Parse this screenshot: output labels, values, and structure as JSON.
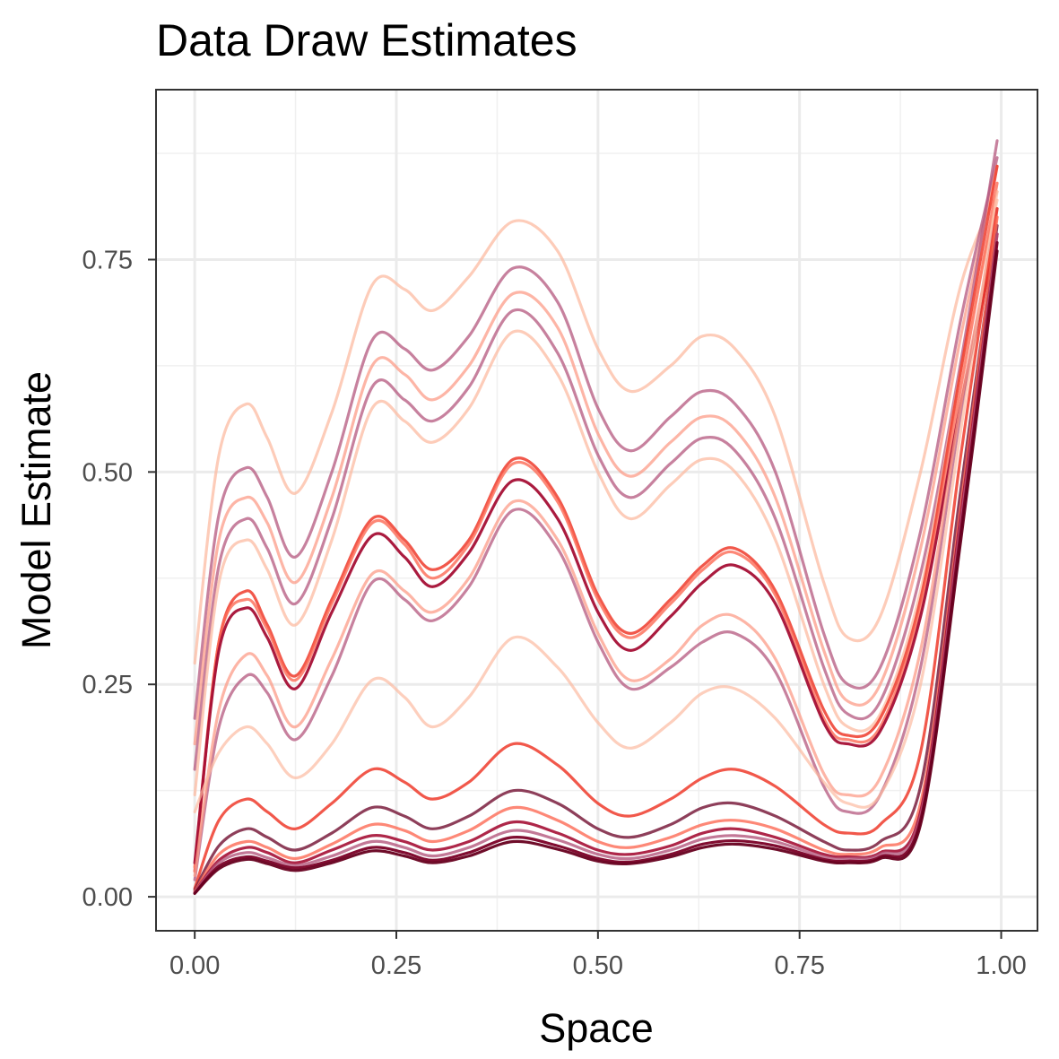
{
  "chart_data": {
    "type": "line",
    "title": "Data Draw Estimates",
    "xlabel": "Space",
    "ylabel": "Model Estimate",
    "xlim": [
      -0.048,
      1.045
    ],
    "ylim": [
      -0.04,
      0.95
    ],
    "x_ticks": [
      "0.00",
      "0.25",
      "0.50",
      "0.75",
      "1.00"
    ],
    "y_ticks": [
      "0.00",
      "0.25",
      "0.50",
      "0.75"
    ],
    "grid": true,
    "legend": "none",
    "x": [
      0.0,
      0.03,
      0.064,
      0.09,
      0.125,
      0.17,
      0.22,
      0.26,
      0.295,
      0.34,
      0.395,
      0.45,
      0.5,
      0.54,
      0.59,
      0.63,
      0.67,
      0.72,
      0.78,
      0.81,
      0.85,
      0.9,
      0.95,
      0.995
    ],
    "series": [
      {
        "color": "#fcbba1",
        "opacity": 0.75,
        "values": [
          0.275,
          0.52,
          0.58,
          0.54,
          0.475,
          0.57,
          0.72,
          0.715,
          0.69,
          0.73,
          0.795,
          0.76,
          0.645,
          0.595,
          0.625,
          0.66,
          0.645,
          0.565,
          0.37,
          0.305,
          0.33,
          0.5,
          0.72,
          0.83
        ]
      },
      {
        "color": "#b4577d",
        "opacity": 0.75,
        "values": [
          0.21,
          0.45,
          0.505,
          0.47,
          0.4,
          0.5,
          0.655,
          0.645,
          0.62,
          0.66,
          0.74,
          0.7,
          0.575,
          0.525,
          0.565,
          0.595,
          0.58,
          0.5,
          0.31,
          0.25,
          0.27,
          0.43,
          0.68,
          0.87
        ]
      },
      {
        "color": "#fc9c88",
        "opacity": 0.75,
        "values": [
          0.18,
          0.42,
          0.47,
          0.44,
          0.37,
          0.47,
          0.625,
          0.615,
          0.585,
          0.625,
          0.71,
          0.67,
          0.545,
          0.495,
          0.535,
          0.565,
          0.55,
          0.47,
          0.29,
          0.23,
          0.25,
          0.41,
          0.66,
          0.86
        ]
      },
      {
        "color": "#b4577d",
        "opacity": 0.75,
        "values": [
          0.15,
          0.39,
          0.445,
          0.41,
          0.345,
          0.445,
          0.6,
          0.585,
          0.56,
          0.6,
          0.69,
          0.64,
          0.52,
          0.47,
          0.51,
          0.54,
          0.525,
          0.445,
          0.27,
          0.215,
          0.23,
          0.38,
          0.63,
          0.89
        ]
      },
      {
        "color": "#fcbba1",
        "opacity": 0.75,
        "values": [
          0.12,
          0.37,
          0.42,
          0.385,
          0.32,
          0.42,
          0.575,
          0.56,
          0.535,
          0.575,
          0.665,
          0.615,
          0.5,
          0.445,
          0.485,
          0.515,
          0.5,
          0.42,
          0.25,
          0.2,
          0.215,
          0.36,
          0.62,
          0.82
        ]
      },
      {
        "color": "#ef3b2c",
        "opacity": 0.85,
        "values": [
          0.03,
          0.3,
          0.36,
          0.32,
          0.26,
          0.35,
          0.445,
          0.42,
          0.385,
          0.42,
          0.515,
          0.47,
          0.355,
          0.31,
          0.35,
          0.39,
          0.41,
          0.36,
          0.22,
          0.19,
          0.21,
          0.35,
          0.62,
          0.86
        ]
      },
      {
        "color": "#fc6a55",
        "opacity": 0.8,
        "values": [
          0.035,
          0.3,
          0.35,
          0.315,
          0.255,
          0.345,
          0.44,
          0.415,
          0.375,
          0.415,
          0.51,
          0.465,
          0.35,
          0.305,
          0.345,
          0.385,
          0.405,
          0.355,
          0.21,
          0.185,
          0.2,
          0.34,
          0.6,
          0.84
        ]
      },
      {
        "color": "#a50f35",
        "opacity": 0.95,
        "values": [
          0.04,
          0.29,
          0.34,
          0.305,
          0.245,
          0.335,
          0.425,
          0.4,
          0.365,
          0.405,
          0.49,
          0.445,
          0.335,
          0.29,
          0.33,
          0.37,
          0.39,
          0.345,
          0.205,
          0.18,
          0.195,
          0.33,
          0.58,
          0.78
        ]
      },
      {
        "color": "#b4577d",
        "opacity": 0.75,
        "values": [
          0.02,
          0.2,
          0.26,
          0.24,
          0.185,
          0.26,
          0.37,
          0.35,
          0.325,
          0.365,
          0.455,
          0.41,
          0.3,
          0.245,
          0.27,
          0.3,
          0.31,
          0.265,
          0.13,
          0.1,
          0.12,
          0.27,
          0.57,
          0.81
        ]
      },
      {
        "color": "#fc9c88",
        "opacity": 0.75,
        "values": [
          0.025,
          0.22,
          0.285,
          0.26,
          0.2,
          0.28,
          0.38,
          0.36,
          0.335,
          0.375,
          0.465,
          0.42,
          0.31,
          0.255,
          0.28,
          0.32,
          0.33,
          0.28,
          0.145,
          0.12,
          0.14,
          0.29,
          0.58,
          0.8
        ]
      },
      {
        "color": "#fcbba1",
        "opacity": 0.7,
        "values": [
          0.1,
          0.17,
          0.2,
          0.18,
          0.14,
          0.18,
          0.255,
          0.235,
          0.2,
          0.235,
          0.305,
          0.27,
          0.205,
          0.175,
          0.205,
          0.24,
          0.245,
          0.21,
          0.135,
          0.11,
          0.12,
          0.25,
          0.55,
          0.83
        ]
      },
      {
        "color": "#ef3b2c",
        "opacity": 0.85,
        "values": [
          0.01,
          0.09,
          0.115,
          0.1,
          0.08,
          0.11,
          0.15,
          0.135,
          0.115,
          0.135,
          0.18,
          0.155,
          0.11,
          0.095,
          0.115,
          0.14,
          0.15,
          0.13,
          0.085,
          0.075,
          0.085,
          0.17,
          0.52,
          0.81
        ]
      },
      {
        "color": "#7a1d3d",
        "opacity": 0.85,
        "values": [
          0.008,
          0.06,
          0.08,
          0.07,
          0.055,
          0.075,
          0.105,
          0.095,
          0.08,
          0.095,
          0.125,
          0.11,
          0.08,
          0.07,
          0.085,
          0.105,
          0.11,
          0.095,
          0.065,
          0.055,
          0.065,
          0.13,
          0.48,
          0.79
        ]
      },
      {
        "color": "#fc6a55",
        "opacity": 0.8,
        "values": [
          0.006,
          0.05,
          0.065,
          0.058,
          0.045,
          0.062,
          0.085,
          0.078,
          0.065,
          0.078,
          0.105,
          0.09,
          0.065,
          0.058,
          0.07,
          0.085,
          0.09,
          0.08,
          0.055,
          0.05,
          0.058,
          0.11,
          0.46,
          0.8
        ]
      },
      {
        "color": "#a50f35",
        "opacity": 0.9,
        "values": [
          0.005,
          0.043,
          0.058,
          0.052,
          0.04,
          0.055,
          0.072,
          0.065,
          0.055,
          0.065,
          0.088,
          0.075,
          0.055,
          0.05,
          0.06,
          0.075,
          0.08,
          0.07,
          0.05,
          0.047,
          0.052,
          0.1,
          0.45,
          0.78
        ]
      },
      {
        "color": "#b4577d",
        "opacity": 0.8,
        "values": [
          0.005,
          0.04,
          0.052,
          0.046,
          0.037,
          0.048,
          0.065,
          0.058,
          0.048,
          0.058,
          0.078,
          0.067,
          0.05,
          0.045,
          0.055,
          0.068,
          0.072,
          0.065,
          0.047,
          0.045,
          0.05,
          0.095,
          0.44,
          0.78
        ]
      },
      {
        "color": "#7a0026",
        "opacity": 0.95,
        "values": [
          0.004,
          0.036,
          0.047,
          0.042,
          0.034,
          0.043,
          0.058,
          0.052,
          0.043,
          0.052,
          0.07,
          0.06,
          0.045,
          0.041,
          0.05,
          0.062,
          0.066,
          0.06,
          0.044,
          0.042,
          0.047,
          0.09,
          0.43,
          0.77
        ]
      },
      {
        "color": "#67001f",
        "opacity": 0.95,
        "values": [
          0.004,
          0.033,
          0.044,
          0.039,
          0.031,
          0.04,
          0.054,
          0.048,
          0.04,
          0.048,
          0.065,
          0.056,
          0.042,
          0.039,
          0.047,
          0.058,
          0.062,
          0.056,
          0.042,
          0.04,
          0.045,
          0.085,
          0.42,
          0.76
        ]
      }
    ]
  }
}
